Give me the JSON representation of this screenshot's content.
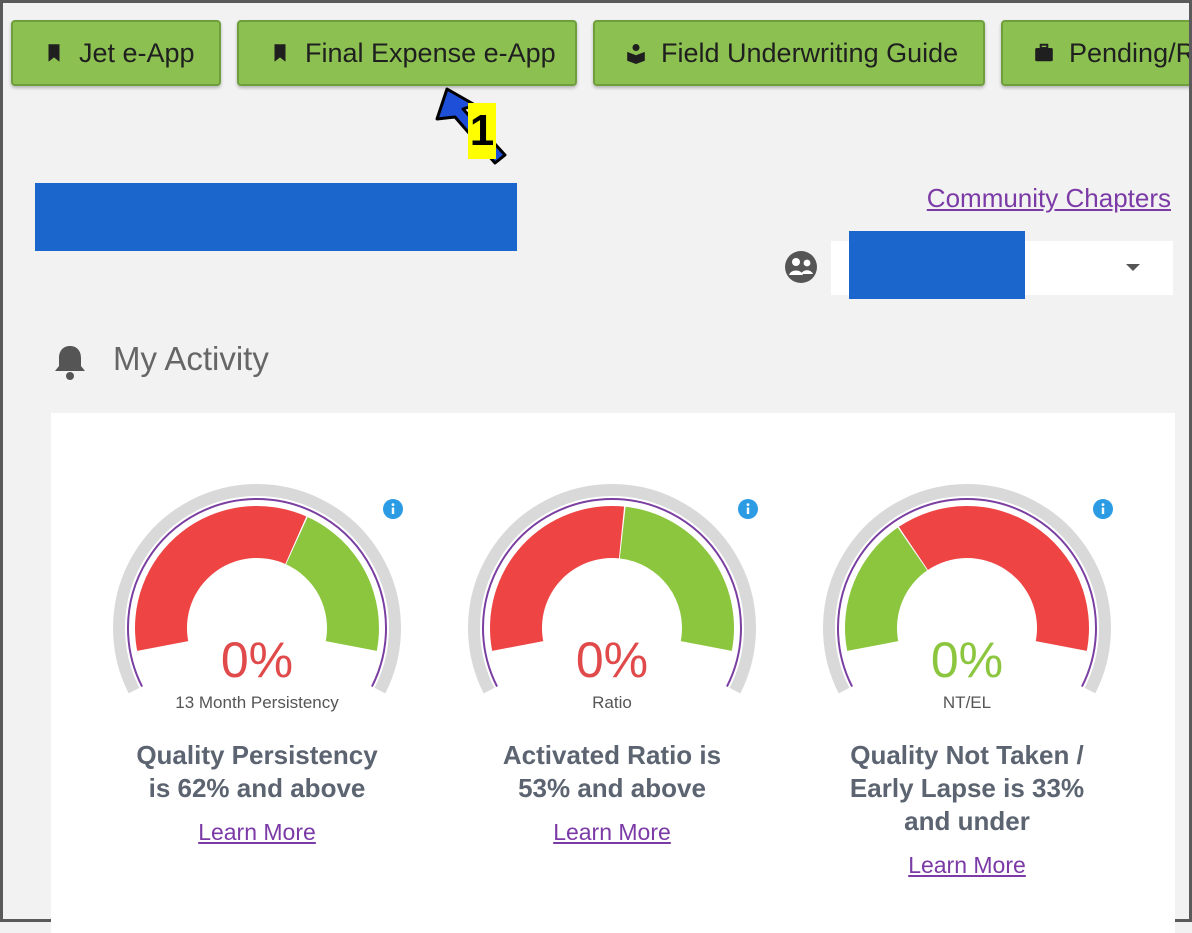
{
  "toolbar": {
    "buttons": [
      {
        "label": "Jet e-App",
        "icon": "bookmark-icon"
      },
      {
        "label": "Final Expense e-App",
        "icon": "bookmark-icon"
      },
      {
        "label": "Field Underwriting Guide",
        "icon": "book-reader-icon"
      },
      {
        "label": "Pending/R",
        "icon": "briefcase-icon"
      }
    ]
  },
  "annotation": {
    "step_number": "1"
  },
  "header": {
    "community_link": "Community Chapters"
  },
  "activity": {
    "title": "My Activity",
    "gauges": [
      {
        "percent": "0%",
        "metric_label": "13 Month Persistency",
        "description": [
          "Quality Persistency",
          "is 62% and above"
        ],
        "learn_more": "Learn More",
        "percent_color": "#e04a4a",
        "threshold": 0.62,
        "low_color": "#ef4444",
        "high_color": "#8cc63f"
      },
      {
        "percent": "0%",
        "metric_label": "Ratio",
        "description": [
          "Activated Ratio is",
          "53% and above"
        ],
        "learn_more": "Learn More",
        "percent_color": "#e04a4a",
        "threshold": 0.53,
        "low_color": "#ef4444",
        "high_color": "#8cc63f"
      },
      {
        "percent": "0%",
        "metric_label": "NT/EL",
        "description": [
          "Quality Not Taken /",
          "Early Lapse is 33%",
          "and under"
        ],
        "learn_more": "Learn More",
        "percent_color": "#8cc63f",
        "threshold": 0.33,
        "low_color": "#8cc63f",
        "high_color": "#ef4444"
      }
    ]
  },
  "colors": {
    "button_green": "#8cc152",
    "redaction_blue": "#1b66cc",
    "link_purple": "#7b3aa6",
    "info_blue": "#2b9be3"
  }
}
